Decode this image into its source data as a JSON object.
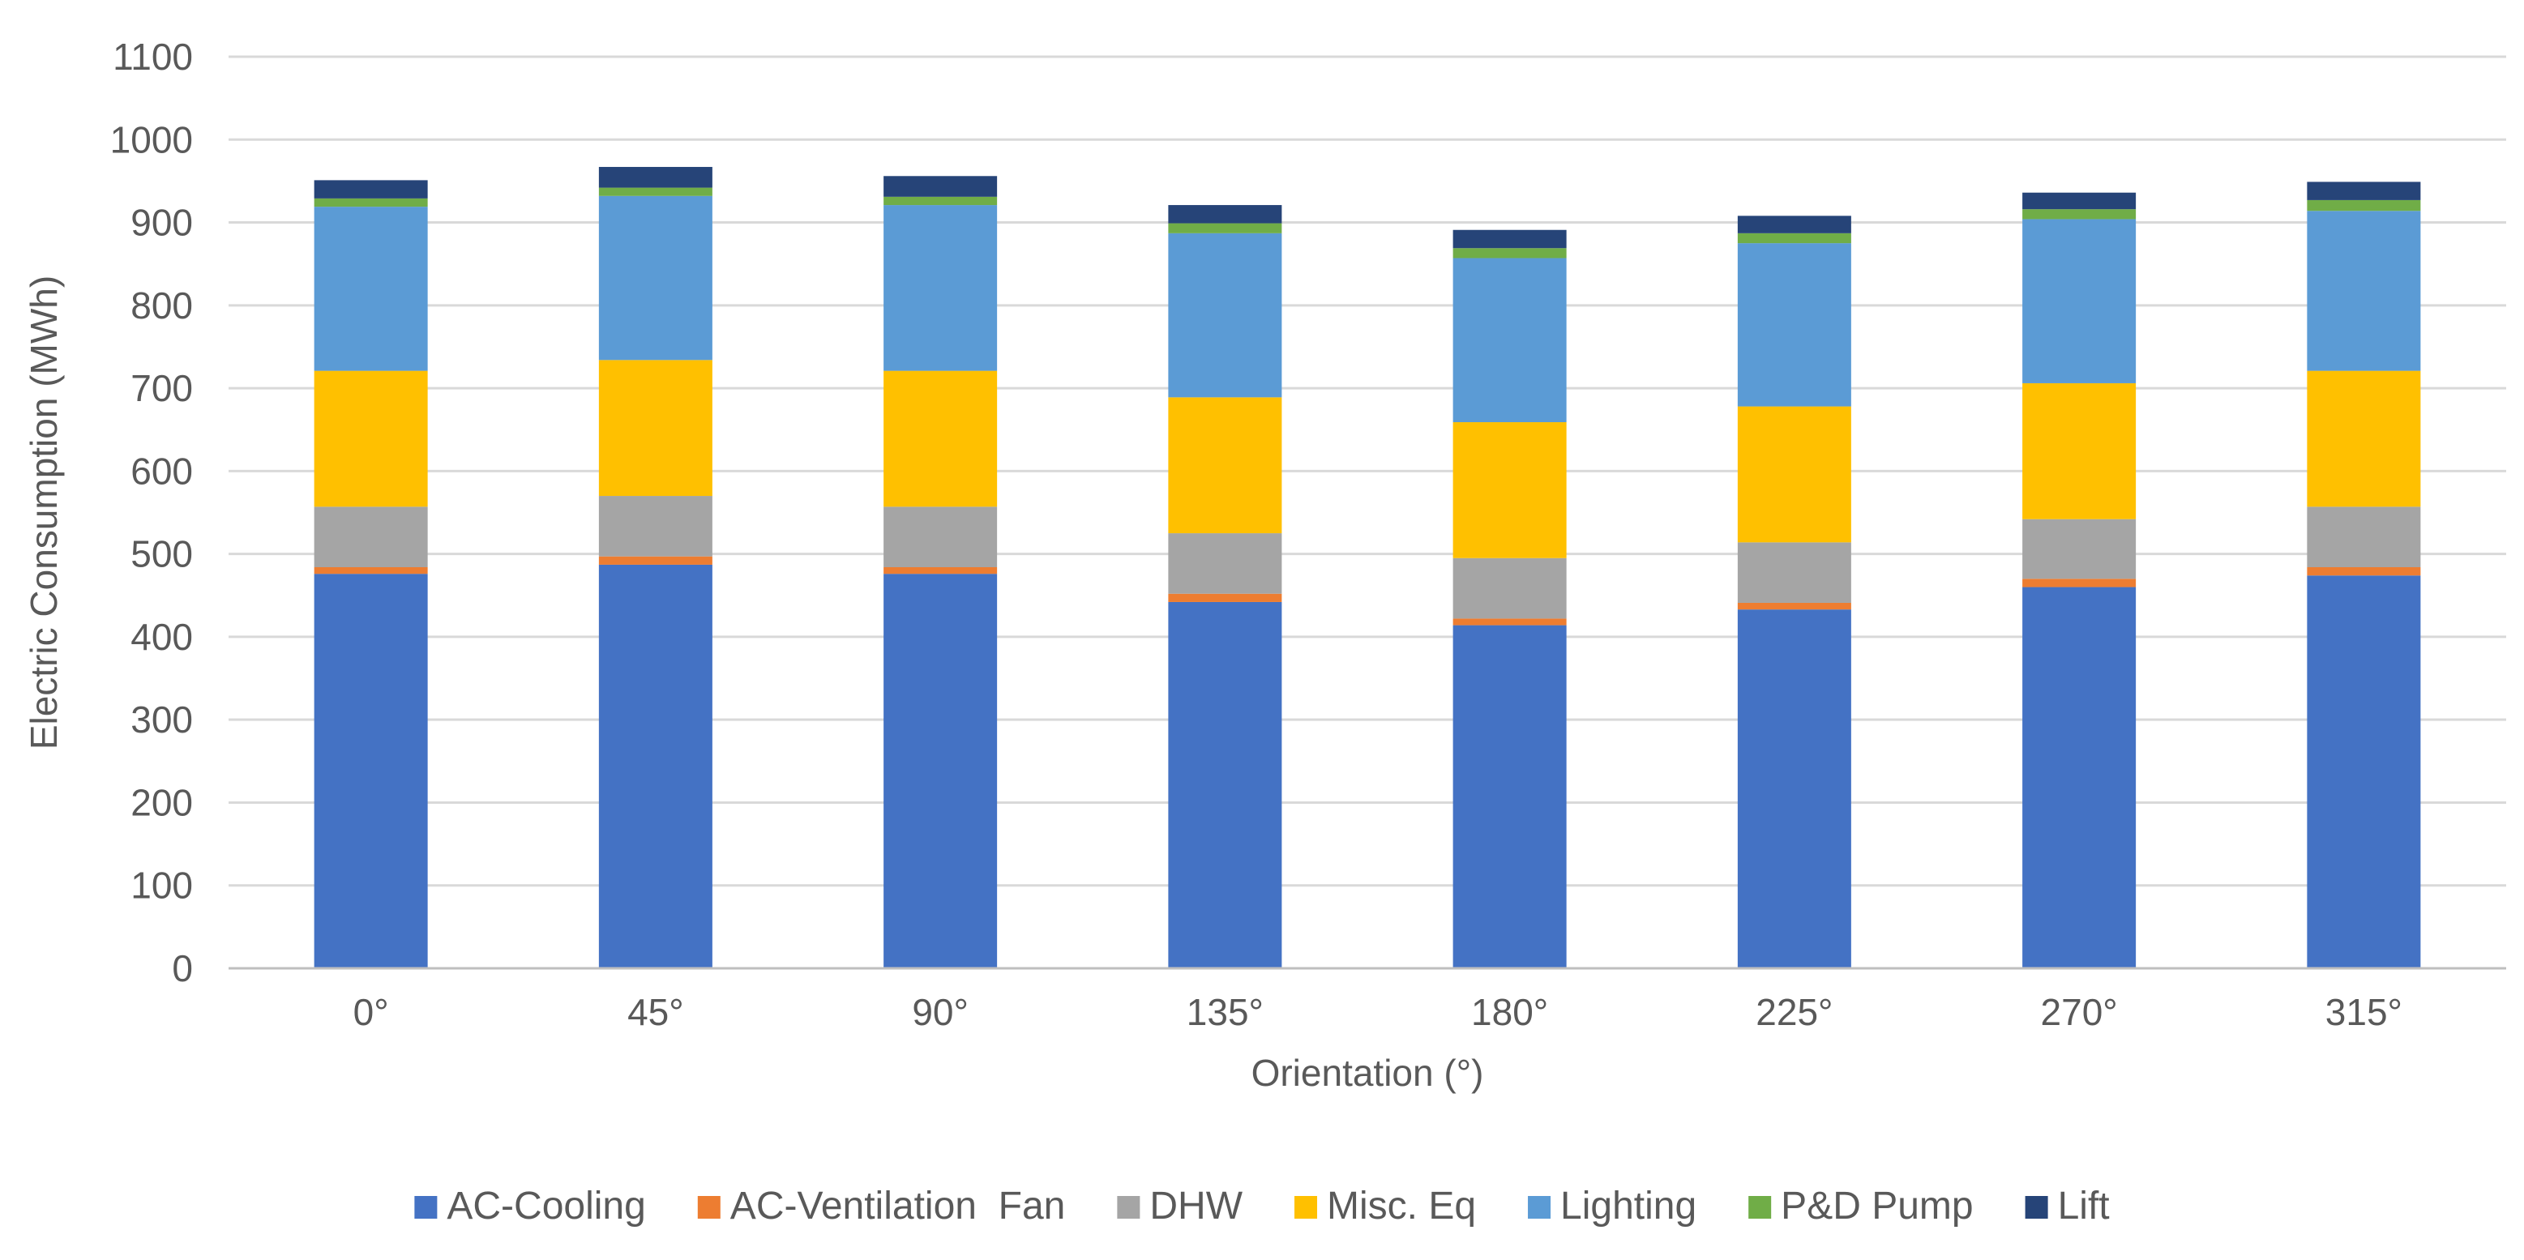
{
  "chart_data": {
    "type": "bar",
    "stacked": true,
    "categories": [
      "0°",
      "45°",
      "90°",
      "135°",
      "180°",
      "225°",
      "270°",
      "315°"
    ],
    "series": [
      {
        "name": "AC-Cooling",
        "color": "#4472C4",
        "values": [
          476,
          487,
          476,
          442,
          414,
          433,
          460,
          474
        ]
      },
      {
        "name": "AC-Ventilation  Fan",
        "color": "#ED7D31",
        "values": [
          8,
          10,
          8,
          10,
          8,
          8,
          10,
          10
        ]
      },
      {
        "name": "DHW",
        "color": "#A5A5A5",
        "values": [
          73,
          73,
          73,
          73,
          73,
          73,
          72,
          73
        ]
      },
      {
        "name": "Misc. Eq",
        "color": "#FFC000",
        "values": [
          164,
          164,
          164,
          164,
          164,
          164,
          164,
          164
        ]
      },
      {
        "name": "Lighting",
        "color": "#5B9BD5",
        "values": [
          198,
          198,
          200,
          198,
          198,
          197,
          198,
          193
        ]
      },
      {
        "name": "P&D Pump",
        "color": "#70AD47",
        "values": [
          10,
          10,
          10,
          12,
          12,
          12,
          12,
          13
        ]
      },
      {
        "name": "Lift",
        "color": "#264478",
        "values": [
          22,
          25,
          25,
          22,
          22,
          21,
          20,
          22
        ]
      }
    ],
    "xlabel": "Orientation (°)",
    "ylabel": "Electric Consumption (MWh)",
    "ylim": [
      0,
      1100
    ],
    "yticks": [
      0,
      100,
      200,
      300,
      400,
      500,
      600,
      700,
      800,
      900,
      1000,
      1100
    ],
    "grid": true,
    "legend": "bottom"
  }
}
